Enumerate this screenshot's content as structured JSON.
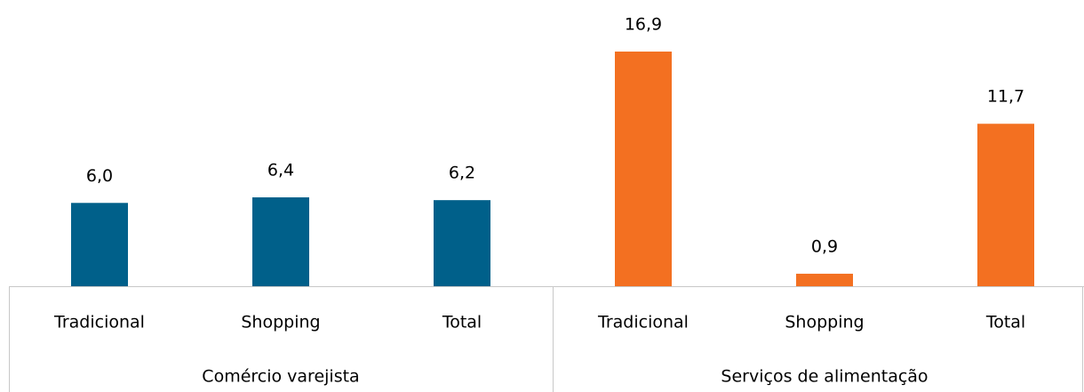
{
  "chart_data": {
    "type": "bar",
    "series": [
      {
        "name": "Comércio varejista",
        "color": "#00608a",
        "categories": [
          "Tradicional",
          "Shopping",
          "Total"
        ],
        "values": [
          6.0,
          6.4,
          6.2
        ],
        "value_labels": [
          "6,0",
          "6,4",
          "6,2"
        ]
      },
      {
        "name": "Serviços de alimentação",
        "color": "#f37021",
        "categories": [
          "Tradicional",
          "Shopping",
          "Total"
        ],
        "values": [
          16.9,
          0.9,
          11.7
        ],
        "value_labels": [
          "16,9",
          "0,9",
          "11,7"
        ]
      }
    ],
    "ylim": [
      0,
      20
    ]
  }
}
